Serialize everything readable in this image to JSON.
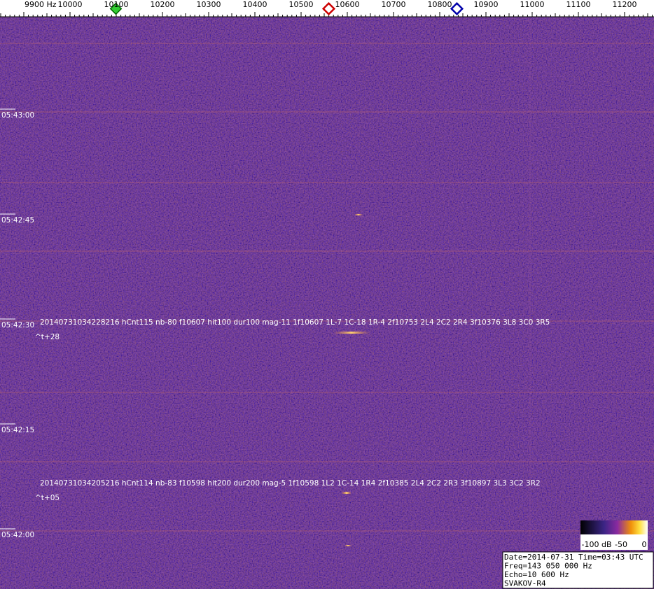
{
  "frequency_axis": {
    "labels": [
      "9900 Hz",
      "10000",
      "10100",
      "10200",
      "10300",
      "10400",
      "10500",
      "10600",
      "10700",
      "10800",
      "10900",
      "11000",
      "11100",
      "11200"
    ]
  },
  "time_labels": [
    "05:43:00",
    "05:42:45",
    "05:42:30",
    "05:42:15",
    "05:42:00"
  ],
  "detections": [
    {
      "text": "20140731034228216 hCnt115 nb-80 f10607 hit100 dur100 mag-11 1f10607 1L-7 1C-18 1R-4 2f10753 2L4 2C2 2R4 3f10376 3L8 3C0 3R5",
      "offset": "^t+28"
    },
    {
      "text": "20140731034205216 hCnt114 nb-83 f10598 hit200 dur200 mag-5 1f10598 1L2 1C-14 1R4 2f10385 2L4 2C2 2R3 3f10897 3L3 3C2 3R2",
      "offset": "^t+05"
    }
  ],
  "colorbar": {
    "labels": [
      "-100 dB",
      "-50",
      "0"
    ]
  },
  "info": {
    "lines": [
      "Date=2014-07-31 Time=03:43 UTC",
      "Freq=143 050 000 Hz",
      "Echo=10 600 Hz",
      "SVAKOV-R4"
    ]
  }
}
